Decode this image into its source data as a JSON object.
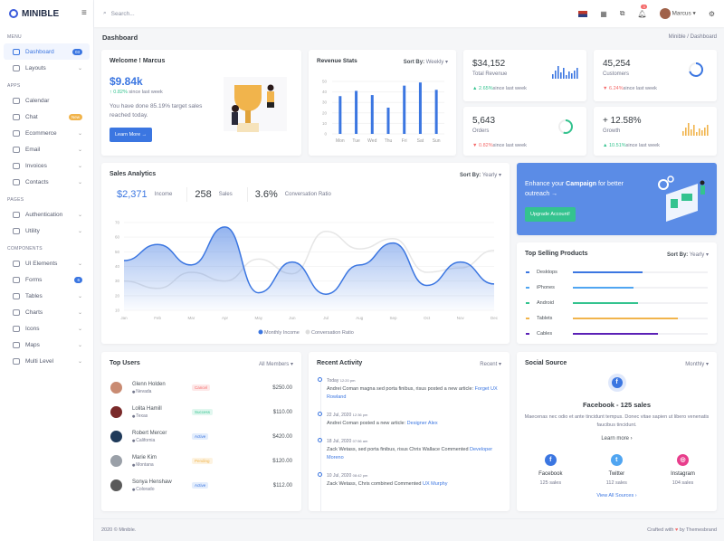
{
  "app": {
    "name": "MINIBLE"
  },
  "sidebar": {
    "sections": [
      {
        "title": "MENU",
        "items": [
          {
            "label": "Dashboard",
            "badge": "03",
            "badge_color": "#3b76e1",
            "active": true
          },
          {
            "label": "Layouts",
            "chevron": true
          }
        ]
      },
      {
        "title": "APPS",
        "items": [
          {
            "label": "Calendar"
          },
          {
            "label": "Chat",
            "badge": "New",
            "badge_color": "#f1b44c"
          },
          {
            "label": "Ecommerce",
            "chevron": true
          },
          {
            "label": "Email",
            "chevron": true
          },
          {
            "label": "Invoices",
            "chevron": true
          },
          {
            "label": "Contacts",
            "chevron": true
          }
        ]
      },
      {
        "title": "PAGES",
        "items": [
          {
            "label": "Authentication",
            "chevron": true
          },
          {
            "label": "Utility",
            "chevron": true
          }
        ]
      },
      {
        "title": "COMPONENTS",
        "items": [
          {
            "label": "UI Elements",
            "chevron": true
          },
          {
            "label": "Forms",
            "badge": "6",
            "badge_color": "#3b76e1"
          },
          {
            "label": "Tables",
            "chevron": true
          },
          {
            "label": "Charts",
            "chevron": true
          },
          {
            "label": "Icons",
            "chevron": true
          },
          {
            "label": "Maps",
            "chevron": true
          },
          {
            "label": "Multi Level",
            "chevron": true
          }
        ]
      }
    ]
  },
  "header": {
    "search_placeholder": "Search...",
    "notifications": "3",
    "user": "Marcus"
  },
  "page": {
    "title": "Dashboard",
    "breadcrumb": [
      "Minible",
      "Dashboard"
    ]
  },
  "welcome": {
    "title": "Welcome ! Marcus",
    "amount": "$9.84k",
    "change": "0.82%",
    "since": "since last week",
    "text": "You have done 85.19% target sales reached today.",
    "button": "Learn More →"
  },
  "revenue": {
    "title": "Revenue Stats",
    "sort_label": "Sort By:",
    "sort_value": "Weekly"
  },
  "stats": [
    {
      "value": "$34,152",
      "label": "Total Revenue",
      "change": "2.65%",
      "dir": "up",
      "since": "since last week",
      "mini": "bars",
      "color": "#3b76e1"
    },
    {
      "value": "45,254",
      "label": "Customers",
      "change": "6.24%",
      "dir": "down",
      "since": "since last week",
      "mini": "ring",
      "color": "#3b76e1",
      "progress": 70
    },
    {
      "value": "5,643",
      "label": "Orders",
      "change": "0.82%",
      "dir": "down",
      "since": "since last week",
      "mini": "ring",
      "color": "#34c38f",
      "progress": 55
    },
    {
      "value": "+ 12.58%",
      "label": "Growth",
      "change": "10.51%",
      "dir": "up",
      "since": "since last week",
      "mini": "bars",
      "color": "#f1b44c"
    }
  ],
  "analytics": {
    "title": "Sales Analytics",
    "sort_label": "Sort By:",
    "sort_value": "Yearly",
    "income": "$2,371",
    "income_label": "Income",
    "sales": "258",
    "sales_label": "Sales",
    "ratio": "3.6%",
    "ratio_label": "Conversation Ratio"
  },
  "campaign": {
    "text_pre": "Enhance your ",
    "text_bold": "Campaign",
    "text_post": " for better outreach →",
    "button": "Upgrade Account!"
  },
  "top_selling": {
    "title": "Top Selling Products",
    "sort_label": "Sort By:",
    "sort_value": "Yearly",
    "products": [
      {
        "name": "Desktops",
        "value": 52,
        "color": "#3b76e1"
      },
      {
        "name": "iPhones",
        "value": 45,
        "color": "#50a5f1"
      },
      {
        "name": "Android",
        "value": 48,
        "color": "#34c38f"
      },
      {
        "name": "Tablets",
        "value": 78,
        "color": "#f1b44c"
      },
      {
        "name": "Cables",
        "value": 63,
        "color": "#5b21b6"
      }
    ]
  },
  "top_users": {
    "title": "Top Users",
    "filter": "All Members",
    "users": [
      {
        "name": "Glenn Holden",
        "location": "Nevada",
        "status": "Cancel",
        "status_color": "#f46a6a",
        "status_bg": "#fde8e8",
        "amount": "$250.00",
        "avatar": "#c98b72"
      },
      {
        "name": "Lolita Hamill",
        "location": "Texas",
        "status": "Success",
        "status_color": "#34c38f",
        "status_bg": "#e1f7ef",
        "amount": "$110.00",
        "avatar": "#7a2a2a"
      },
      {
        "name": "Robert Mercer",
        "location": "California",
        "status": "Active",
        "status_color": "#3b76e1",
        "status_bg": "#e3edfc",
        "amount": "$420.00",
        "avatar": "#1f3a5a"
      },
      {
        "name": "Marie Kim",
        "location": "Montana",
        "status": "Pending",
        "status_color": "#f1b44c",
        "status_bg": "#fdf3e1",
        "amount": "$120.00",
        "avatar": "#9aa0a8"
      },
      {
        "name": "Sonya Henshaw",
        "location": "Colorado",
        "status": "Active",
        "status_color": "#3b76e1",
        "status_bg": "#e3edfc",
        "amount": "$112.00",
        "avatar": "#5a5a5a"
      }
    ]
  },
  "activity": {
    "title": "Recent Activity",
    "filter": "Recent",
    "items": [
      {
        "date": "Today",
        "time": "12:20 pm",
        "text": "Andrei Coman magna sed porta finibus, risus posted a new article: ",
        "link": "Forget UX Rowland"
      },
      {
        "date": "22 Jul, 2020",
        "time": "12:36 pm",
        "text": "Andrei Coman posted a new article: ",
        "link": "Designer Alex"
      },
      {
        "date": "18 Jul, 2020",
        "time": "07:56 am",
        "text": "Zack Wetass, sed porta finibus, risus Chris Wallace Commented ",
        "link": "Developer Moreno"
      },
      {
        "date": "10 Jul, 2020",
        "time": "08:42 pm",
        "text": "Zack Wetass, Chris combined Commented ",
        "link": "UX Murphy"
      }
    ]
  },
  "social": {
    "title": "Social Source",
    "filter": "Monthly",
    "headline": "Facebook - 125 sales",
    "text": "Maecenas nec odio et ante tincidunt tempus. Donec vitae sapien ut libero venenatis faucibus tincidunt.",
    "learn": "Learn more ›",
    "sources": [
      {
        "name": "Facebook",
        "sales": "125 sales",
        "color": "#3b76e1",
        "glyph": "f"
      },
      {
        "name": "Twitter",
        "sales": "112 sales",
        "color": "#50a5f1",
        "glyph": "t"
      },
      {
        "name": "Instagram",
        "sales": "104 sales",
        "color": "#e83e8c",
        "glyph": "◎"
      }
    ],
    "view_all": "View All Sources ›"
  },
  "footer": {
    "left": "2020 © Minible.",
    "right_pre": "Crafted with",
    "right_post": "by Themesbrand"
  },
  "chart_data": [
    {
      "type": "bar",
      "title": "Revenue Stats",
      "categories": [
        "Mon",
        "Tue",
        "Wed",
        "Thu",
        "Fri",
        "Sat",
        "Sun"
      ],
      "values": [
        36,
        41,
        37,
        25,
        46,
        49,
        42
      ],
      "ylim": [
        0,
        50
      ],
      "yticks": [
        0,
        10,
        20,
        30,
        40,
        50
      ],
      "color": "#3b76e1",
      "grid": true
    },
    {
      "type": "area",
      "title": "Sales Analytics",
      "categories": [
        "Jan",
        "Feb",
        "Mar",
        "Apr",
        "May",
        "Jun",
        "Jul",
        "Aug",
        "Sep",
        "Oct",
        "Nov",
        "Dec"
      ],
      "ylim": [
        10,
        70
      ],
      "yticks": [
        10,
        20,
        30,
        40,
        50,
        60,
        70
      ],
      "legend": "bottom",
      "series": [
        {
          "name": "Monthly Income",
          "values": [
            44,
            55,
            41,
            67,
            22,
            43,
            21,
            41,
            56,
            27,
            43,
            28
          ],
          "color": "#3b76e1"
        },
        {
          "name": "Conversation Ratio",
          "values": [
            30,
            25,
            36,
            30,
            45,
            35,
            64,
            52,
            59,
            36,
            39,
            51
          ],
          "color": "#e6e6e6"
        }
      ]
    }
  ]
}
